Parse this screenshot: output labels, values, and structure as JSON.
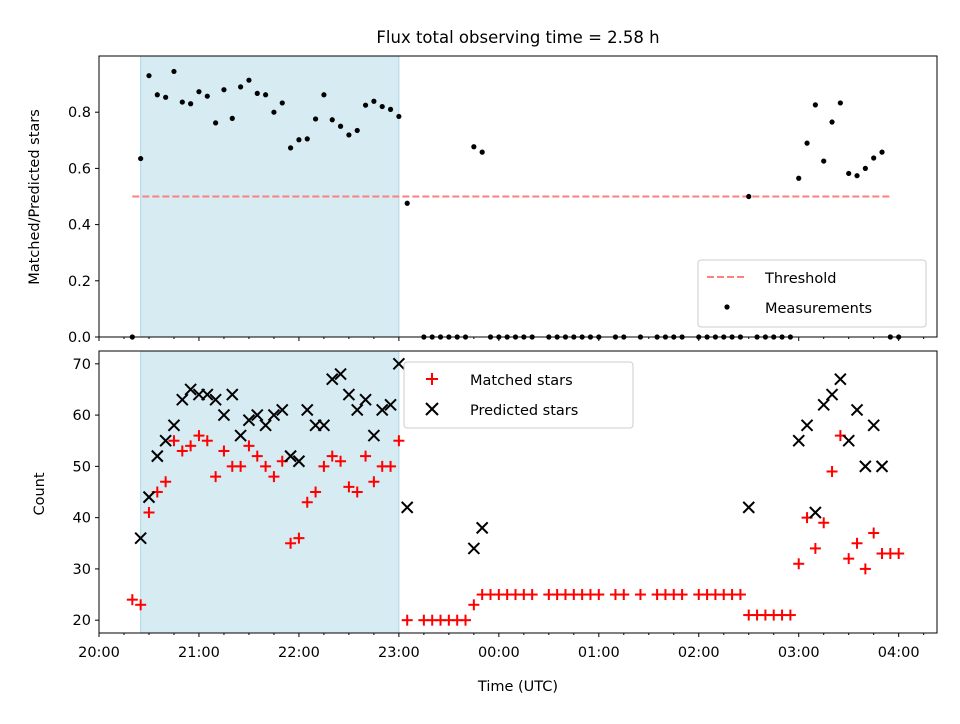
{
  "title": "Flux total observing time = 2.58 h",
  "colors": {
    "threshold": "#ff7f7f",
    "measurement": "#000000",
    "matched": "#ff0000",
    "predicted": "#000000",
    "highlight": "#add8e6"
  },
  "chart_data": [
    {
      "type": "scatter",
      "ylabel": "Matched/Predicted stars",
      "ylim": [
        0,
        1.0
      ],
      "yticks": [
        "0.0",
        "0.2",
        "0.4",
        "0.6",
        "0.8"
      ],
      "yticks_values": [
        0,
        0.2,
        0.4,
        0.6,
        0.8
      ],
      "threshold": {
        "name": "Threshold",
        "value": 0.5,
        "x_range": [
          "20:20",
          "03:55"
        ]
      },
      "highlight": {
        "x_range": [
          "20:25",
          "23:00"
        ]
      },
      "legend": {
        "placement": "lower-right",
        "entries": [
          "Threshold",
          "Measurements"
        ]
      },
      "series": [
        {
          "name": "Measurements",
          "points": [
            [
              "20:20",
              0.0
            ],
            [
              "20:25",
              0.635
            ],
            [
              "20:30",
              0.93
            ],
            [
              "20:35",
              0.862
            ],
            [
              "20:40",
              0.853
            ],
            [
              "20:45",
              0.945
            ],
            [
              "20:50",
              0.836
            ],
            [
              "20:55",
              0.83
            ],
            [
              "21:00",
              0.873
            ],
            [
              "21:05",
              0.857
            ],
            [
              "21:10",
              0.762
            ],
            [
              "21:15",
              0.88
            ],
            [
              "21:20",
              0.778
            ],
            [
              "21:25",
              0.89
            ],
            [
              "21:30",
              0.914
            ],
            [
              "21:35",
              0.867
            ],
            [
              "21:40",
              0.862
            ],
            [
              "21:45",
              0.8
            ],
            [
              "21:50",
              0.833
            ],
            [
              "21:55",
              0.673
            ],
            [
              "22:00",
              0.702
            ],
            [
              "22:05",
              0.705
            ],
            [
              "22:10",
              0.776
            ],
            [
              "22:15",
              0.862
            ],
            [
              "22:20",
              0.773
            ],
            [
              "22:25",
              0.75
            ],
            [
              "22:30",
              0.719
            ],
            [
              "22:35",
              0.735
            ],
            [
              "22:40",
              0.825
            ],
            [
              "22:45",
              0.839
            ],
            [
              "22:50",
              0.82
            ],
            [
              "22:55",
              0.81
            ],
            [
              "23:00",
              0.785
            ],
            [
              "23:05",
              0.476
            ],
            [
              "23:15",
              0.0
            ],
            [
              "23:20",
              0.0
            ],
            [
              "23:25",
              0.0
            ],
            [
              "23:30",
              0.0
            ],
            [
              "23:35",
              0.0
            ],
            [
              "23:40",
              0.0
            ],
            [
              "23:45",
              0.677
            ],
            [
              "23:50",
              0.658
            ],
            [
              "23:55",
              0.0
            ],
            [
              "00:00",
              0.0
            ],
            [
              "00:05",
              0.0
            ],
            [
              "00:10",
              0.0
            ],
            [
              "00:15",
              0.0
            ],
            [
              "00:20",
              0.0
            ],
            [
              "00:30",
              0.0
            ],
            [
              "00:35",
              0.0
            ],
            [
              "00:40",
              0.0
            ],
            [
              "00:45",
              0.0
            ],
            [
              "00:50",
              0.0
            ],
            [
              "00:55",
              0.0
            ],
            [
              "01:00",
              0.0
            ],
            [
              "01:10",
              0.0
            ],
            [
              "01:15",
              0.0
            ],
            [
              "01:25",
              0.0
            ],
            [
              "01:35",
              0.0
            ],
            [
              "01:40",
              0.0
            ],
            [
              "01:45",
              0.0
            ],
            [
              "01:50",
              0.0
            ],
            [
              "02:00",
              0.0
            ],
            [
              "02:05",
              0.0
            ],
            [
              "02:10",
              0.0
            ],
            [
              "02:15",
              0.0
            ],
            [
              "02:20",
              0.0
            ],
            [
              "02:25",
              0.0
            ],
            [
              "02:30",
              0.5
            ],
            [
              "02:35",
              0.0
            ],
            [
              "02:40",
              0.0
            ],
            [
              "02:45",
              0.0
            ],
            [
              "02:50",
              0.0
            ],
            [
              "02:55",
              0.0
            ],
            [
              "03:00",
              0.565
            ],
            [
              "03:05",
              0.69
            ],
            [
              "03:10",
              0.826
            ],
            [
              "03:15",
              0.626
            ],
            [
              "03:20",
              0.765
            ],
            [
              "03:25",
              0.833
            ],
            [
              "03:30",
              0.582
            ],
            [
              "03:35",
              0.574
            ],
            [
              "03:40",
              0.6
            ],
            [
              "03:45",
              0.637
            ],
            [
              "03:50",
              0.658
            ],
            [
              "03:55",
              0.0
            ],
            [
              "04:00",
              0.0
            ]
          ]
        }
      ]
    },
    {
      "type": "scatter",
      "xlabel": "Time (UTC)",
      "ylabel": "Count",
      "ylim": [
        17.5,
        72.5
      ],
      "yticks": [
        "20",
        "30",
        "40",
        "50",
        "60",
        "70"
      ],
      "yticks_values": [
        20,
        30,
        40,
        50,
        60,
        70
      ],
      "xlim": [
        "20:00",
        "04:23"
      ],
      "xticks": [
        "20:00",
        "21:00",
        "22:00",
        "23:00",
        "00:00",
        "01:00",
        "02:00",
        "03:00",
        "04:00"
      ],
      "highlight": {
        "x_range": [
          "20:25",
          "23:00"
        ]
      },
      "legend": {
        "placement": "top-center",
        "entries": [
          "Matched stars",
          "Predicted stars"
        ]
      },
      "series": [
        {
          "name": "Matched stars",
          "points": [
            [
              "20:20",
              24
            ],
            [
              "20:25",
              23
            ],
            [
              "20:30",
              41
            ],
            [
              "20:35",
              45
            ],
            [
              "20:40",
              47
            ],
            [
              "20:45",
              55
            ],
            [
              "20:50",
              53
            ],
            [
              "20:55",
              54
            ],
            [
              "21:00",
              56
            ],
            [
              "21:05",
              55
            ],
            [
              "21:10",
              48
            ],
            [
              "21:15",
              53
            ],
            [
              "21:20",
              50
            ],
            [
              "21:25",
              50
            ],
            [
              "21:30",
              54
            ],
            [
              "21:35",
              52
            ],
            [
              "21:40",
              50
            ],
            [
              "21:45",
              48
            ],
            [
              "21:50",
              51
            ],
            [
              "21:55",
              35
            ],
            [
              "22:00",
              36
            ],
            [
              "22:05",
              43
            ],
            [
              "22:10",
              45
            ],
            [
              "22:15",
              50
            ],
            [
              "22:20",
              52
            ],
            [
              "22:25",
              51
            ],
            [
              "22:30",
              46
            ],
            [
              "22:35",
              45
            ],
            [
              "22:40",
              52
            ],
            [
              "22:45",
              47
            ],
            [
              "22:50",
              50
            ],
            [
              "22:55",
              50
            ],
            [
              "23:00",
              55
            ],
            [
              "23:05",
              20
            ],
            [
              "23:15",
              20
            ],
            [
              "23:20",
              20
            ],
            [
              "23:25",
              20
            ],
            [
              "23:30",
              20
            ],
            [
              "23:35",
              20
            ],
            [
              "23:40",
              20
            ],
            [
              "23:45",
              23
            ],
            [
              "23:50",
              25
            ],
            [
              "23:55",
              25
            ],
            [
              "00:00",
              25
            ],
            [
              "00:05",
              25
            ],
            [
              "00:10",
              25
            ],
            [
              "00:15",
              25
            ],
            [
              "00:20",
              25
            ],
            [
              "00:30",
              25
            ],
            [
              "00:35",
              25
            ],
            [
              "00:40",
              25
            ],
            [
              "00:45",
              25
            ],
            [
              "00:50",
              25
            ],
            [
              "00:55",
              25
            ],
            [
              "01:00",
              25
            ],
            [
              "01:10",
              25
            ],
            [
              "01:15",
              25
            ],
            [
              "01:25",
              25
            ],
            [
              "01:35",
              25
            ],
            [
              "01:40",
              25
            ],
            [
              "01:45",
              25
            ],
            [
              "01:50",
              25
            ],
            [
              "02:00",
              25
            ],
            [
              "02:05",
              25
            ],
            [
              "02:10",
              25
            ],
            [
              "02:15",
              25
            ],
            [
              "02:20",
              25
            ],
            [
              "02:25",
              25
            ],
            [
              "02:30",
              21
            ],
            [
              "02:35",
              21
            ],
            [
              "02:40",
              21
            ],
            [
              "02:45",
              21
            ],
            [
              "02:50",
              21
            ],
            [
              "02:55",
              21
            ],
            [
              "03:00",
              31
            ],
            [
              "03:05",
              40
            ],
            [
              "03:10",
              34
            ],
            [
              "03:15",
              39
            ],
            [
              "03:20",
              49
            ],
            [
              "03:25",
              56
            ],
            [
              "03:30",
              32
            ],
            [
              "03:35",
              35
            ],
            [
              "03:40",
              30
            ],
            [
              "03:45",
              37
            ],
            [
              "03:50",
              33
            ],
            [
              "03:55",
              33
            ],
            [
              "04:00",
              33
            ]
          ]
        },
        {
          "name": "Predicted stars",
          "points": [
            [
              "20:25",
              36
            ],
            [
              "20:30",
              44
            ],
            [
              "20:35",
              52
            ],
            [
              "20:40",
              55
            ],
            [
              "20:45",
              58
            ],
            [
              "20:50",
              63
            ],
            [
              "20:55",
              65
            ],
            [
              "21:00",
              64
            ],
            [
              "21:05",
              64
            ],
            [
              "21:10",
              63
            ],
            [
              "21:15",
              60
            ],
            [
              "21:20",
              64
            ],
            [
              "21:25",
              56
            ],
            [
              "21:30",
              59
            ],
            [
              "21:35",
              60
            ],
            [
              "21:40",
              58
            ],
            [
              "21:45",
              60
            ],
            [
              "21:50",
              61
            ],
            [
              "21:55",
              52
            ],
            [
              "22:00",
              51
            ],
            [
              "22:05",
              61
            ],
            [
              "22:10",
              58
            ],
            [
              "22:15",
              58
            ],
            [
              "22:20",
              67
            ],
            [
              "22:25",
              68
            ],
            [
              "22:30",
              64
            ],
            [
              "22:35",
              61
            ],
            [
              "22:40",
              63
            ],
            [
              "22:45",
              56
            ],
            [
              "22:50",
              61
            ],
            [
              "22:55",
              62
            ],
            [
              "23:00",
              70
            ],
            [
              "23:05",
              42
            ],
            [
              "23:45",
              34
            ],
            [
              "23:50",
              38
            ],
            [
              "02:30",
              42
            ],
            [
              "03:00",
              55
            ],
            [
              "03:05",
              58
            ],
            [
              "03:10",
              41
            ],
            [
              "03:15",
              62
            ],
            [
              "03:20",
              64
            ],
            [
              "03:25",
              67
            ],
            [
              "03:30",
              55
            ],
            [
              "03:35",
              61
            ],
            [
              "03:40",
              50
            ],
            [
              "03:45",
              58
            ],
            [
              "03:50",
              50
            ]
          ]
        }
      ]
    }
  ]
}
